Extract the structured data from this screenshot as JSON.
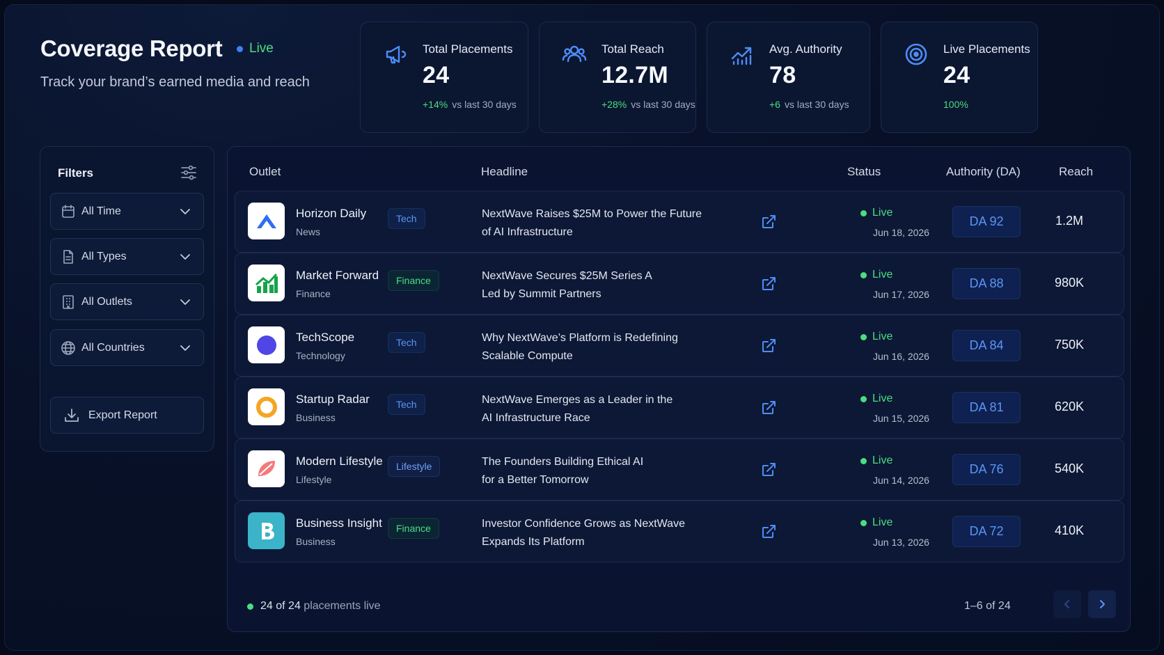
{
  "header": {
    "title": "Coverage Report",
    "live_label": "Live",
    "subtitle": "Track your brand’s earned media and reach"
  },
  "stats": [
    {
      "icon": "megaphone-icon",
      "label": "Total Placements",
      "value": "24",
      "delta": "+14%",
      "delta_suffix": "vs last 30 days"
    },
    {
      "icon": "users-icon",
      "label": "Total Reach",
      "value": "12.7M",
      "delta": "+28%",
      "delta_suffix": "vs last 30 days"
    },
    {
      "icon": "trend-up-icon",
      "label": "Avg. Authority",
      "value": "78",
      "delta": "+6",
      "delta_suffix": "vs last 30 days"
    },
    {
      "icon": "target-icon",
      "label": "Live Placements",
      "value": "24",
      "delta": "100%",
      "delta_suffix": ""
    }
  ],
  "filters": {
    "title": "Filters",
    "time": "All Time",
    "types": "All Types",
    "outlets": "All Outlets",
    "countries": "All Countries",
    "export_label": "Export Report"
  },
  "table": {
    "columns": {
      "outlet": "Outlet",
      "headline": "Headline",
      "status": "Status",
      "authority": "Authority (DA)",
      "reach": "Reach"
    },
    "rows": [
      {
        "outlet": "Horizon Daily",
        "type": "News",
        "tag": "Tech",
        "headline_1": "NextWave Raises $25M to Power the Future",
        "headline_2": "of AI Infrastructure",
        "status": "Live",
        "date": "Jun 18, 2026",
        "da": "DA 92",
        "reach": "1.2M"
      },
      {
        "outlet": "Market Forward",
        "type": "Finance",
        "tag": "Finance",
        "headline_1": "NextWave Secures $25M Series A",
        "headline_2": "Led by Summit Partners",
        "status": "Live",
        "date": "Jun 17, 2026",
        "da": "DA 88",
        "reach": "980K"
      },
      {
        "outlet": "TechScope",
        "type": "Technology",
        "tag": "Tech",
        "headline_1": "Why NextWave’s Platform is Redefining",
        "headline_2": "Scalable Compute",
        "status": "Live",
        "date": "Jun 16, 2026",
        "da": "DA 84",
        "reach": "750K"
      },
      {
        "outlet": "Startup Radar",
        "type": "Business",
        "tag": "Tech",
        "headline_1": "NextWave Emerges as a Leader in the",
        "headline_2": "AI Infrastructure Race",
        "status": "Live",
        "date": "Jun 15, 2026",
        "da": "DA 81",
        "reach": "620K"
      },
      {
        "outlet": "Modern Lifestyle",
        "type": "Lifestyle",
        "tag": "Lifestyle",
        "headline_1": "The Founders Building Ethical AI",
        "headline_2": "for a Better Tomorrow",
        "status": "Live",
        "date": "Jun 14, 2026",
        "da": "DA 76",
        "reach": "540K"
      },
      {
        "outlet": "Business Insight",
        "type": "Business",
        "tag": "Finance",
        "headline_1": "Investor Confidence Grows as NextWave",
        "headline_2": "Expands Its Platform",
        "status": "Live",
        "date": "Jun 13, 2026",
        "da": "DA 72",
        "reach": "410K"
      }
    ]
  },
  "footer": {
    "live_count": "24",
    "of_word": "of",
    "total": "24",
    "live_suffix": "placements live",
    "pagination": "1–6 of 24"
  },
  "colors": {
    "accent": "#4f8df7",
    "positive": "#4ade80",
    "background": "#081128"
  }
}
